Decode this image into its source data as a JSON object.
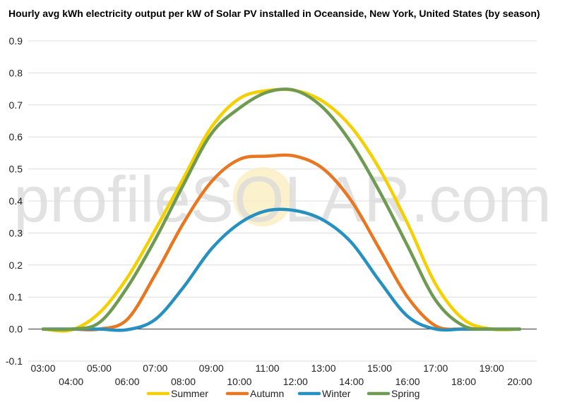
{
  "chart_data": {
    "type": "line",
    "title": "Hourly avg kWh electricity output per kW of Solar PV installed in Oceanside, New York, United States (by season)",
    "xlabel": "",
    "ylabel": "",
    "ylim": [
      -0.1,
      0.9
    ],
    "yticks": [
      "-0.1",
      "0.0",
      "0.1",
      "0.2",
      "0.3",
      "0.4",
      "0.5",
      "0.6",
      "0.7",
      "0.8",
      "0.9"
    ],
    "x": [
      "03:00",
      "04:00",
      "05:00",
      "06:00",
      "07:00",
      "08:00",
      "09:00",
      "10:00",
      "11:00",
      "12:00",
      "13:00",
      "14:00",
      "15:00",
      "16:00",
      "17:00",
      "18:00",
      "19:00",
      "20:00"
    ],
    "grid": true,
    "legend": "bottom",
    "watermark": "profileSOLAR.com",
    "series": [
      {
        "name": "Summer",
        "color": "#f5d000",
        "values": [
          0.0,
          -0.003,
          0.05,
          0.16,
          0.31,
          0.47,
          0.63,
          0.72,
          0.745,
          0.745,
          0.71,
          0.63,
          0.5,
          0.33,
          0.14,
          0.03,
          0.0,
          0.0
        ]
      },
      {
        "name": "Autumn",
        "color": "#e87722",
        "values": [
          0.0,
          0.0,
          0.0,
          0.03,
          0.17,
          0.33,
          0.46,
          0.53,
          0.54,
          0.54,
          0.5,
          0.4,
          0.25,
          0.1,
          0.01,
          0.0,
          0.0,
          0.0
        ]
      },
      {
        "name": "Winter",
        "color": "#2691c0",
        "values": [
          0.0,
          0.0,
          0.0,
          -0.002,
          0.03,
          0.13,
          0.25,
          0.33,
          0.37,
          0.37,
          0.34,
          0.27,
          0.15,
          0.04,
          0.0,
          0.0,
          0.0,
          0.0
        ]
      },
      {
        "name": "Spring",
        "color": "#6e9a52",
        "values": [
          0.0,
          0.0,
          0.02,
          0.13,
          0.28,
          0.45,
          0.61,
          0.69,
          0.74,
          0.745,
          0.69,
          0.58,
          0.43,
          0.26,
          0.09,
          0.01,
          0.0,
          0.0
        ]
      }
    ]
  }
}
